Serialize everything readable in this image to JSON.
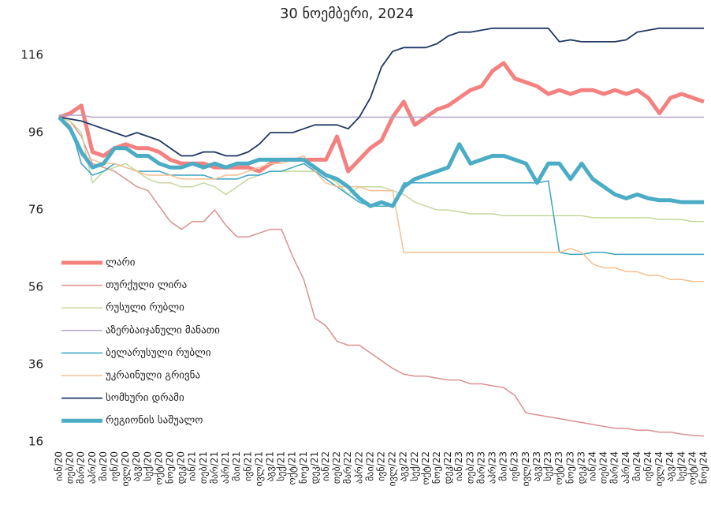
{
  "chart_data": {
    "type": "line",
    "title": "30 ნოემბერი, 2024",
    "categories": [
      "იან/20",
      "თებ/20",
      "მარ/20",
      "აპრ/20",
      "მაი/20",
      "ივნ/20",
      "ივლ/20",
      "აგვ/20",
      "სექ/20",
      "ოქტ/20",
      "ნოე/20",
      "დეკ/20",
      "იან/21",
      "თებ/21",
      "მარ/21",
      "აპრ/21",
      "მაი/21",
      "ივნ/21",
      "ივლ/21",
      "აგვ/21",
      "სექ/21",
      "ოქტ/21",
      "ნოე/21",
      "დეკ/21",
      "იან/22",
      "თებ/22",
      "მარ/22",
      "აპრ/22",
      "მაი/22",
      "ივნ/22",
      "ივლ/22",
      "აგვ/22",
      "სექ/22",
      "ოქტ/22",
      "ნოე/22",
      "დეკ/22",
      "იან/23",
      "თებ/23",
      "მარ/23",
      "აპრ/23",
      "მაი/23",
      "ივნ/23",
      "ივლ/23",
      "აგვ/23",
      "სექ/23",
      "ოქტ/23",
      "ნოე/23",
      "დეკ/23",
      "იან/24",
      "თებ/24",
      "მარ/24",
      "აპრ/24",
      "მაი/24",
      "ივნ/24",
      "ივლ/24",
      "აგვ/24",
      "სექ/24",
      "ოქტ/24",
      "ნოე/24"
    ],
    "series": [
      {
        "name": "ლარი",
        "color": "#f4817f",
        "width": 5,
        "values": [
          100,
          101,
          103,
          91,
          90,
          92,
          93,
          92,
          92,
          91,
          89,
          88,
          88,
          88,
          87,
          87,
          87,
          87,
          86,
          88,
          89,
          89,
          89,
          89,
          89,
          95,
          86,
          89,
          92,
          94,
          100,
          104,
          98,
          100,
          102,
          103,
          105,
          107,
          108,
          112,
          114,
          110,
          109,
          108,
          106,
          107,
          106,
          107,
          107,
          106,
          107,
          106,
          107,
          105,
          101,
          105,
          106,
          105,
          104
        ]
      },
      {
        "name": "თურქული ლირა",
        "color": "#d9918f",
        "width": 1.5,
        "values": [
          100,
          99,
          95,
          88,
          87,
          86,
          84,
          82,
          81,
          77,
          73,
          71,
          73,
          73,
          76,
          72,
          69,
          69,
          70,
          71,
          71,
          64,
          58,
          48,
          46,
          42,
          41,
          41,
          39,
          37,
          35,
          33.5,
          33,
          33,
          32.5,
          32,
          32,
          31,
          31,
          30.5,
          30,
          28,
          23.5,
          23,
          22.5,
          22,
          21.5,
          21,
          20.5,
          20,
          19.5,
          19.5,
          19,
          19,
          18.5,
          18.5,
          18,
          17.7,
          17.5
        ]
      },
      {
        "name": "რუსული რუბლი",
        "color": "#c4d79b",
        "width": 1.5,
        "values": [
          100,
          99,
          96,
          83,
          86,
          87,
          88,
          86,
          84,
          83,
          83,
          82,
          82,
          83,
          82,
          80,
          82,
          84,
          85,
          86,
          86,
          86,
          86,
          86,
          85,
          83,
          80,
          82,
          82,
          82,
          81,
          80,
          78,
          77,
          76,
          76,
          75.5,
          75,
          75,
          75,
          74.5,
          74.5,
          74.5,
          74.5,
          74.5,
          74.5,
          74.5,
          74.5,
          74,
          74,
          74,
          74,
          74,
          74,
          73.5,
          73.5,
          73.5,
          73,
          73
        ]
      },
      {
        "name": "აზერბაიჯანული მანათი",
        "color": "#b3a2c7",
        "width": 1.5,
        "values": [
          100.5,
          100.5,
          100.5,
          100,
          100,
          100,
          100,
          100,
          100,
          100,
          100,
          100,
          100,
          100,
          100,
          100,
          100,
          100,
          100,
          100,
          100,
          100,
          100,
          100,
          100,
          100,
          100,
          100,
          100,
          100,
          100,
          100,
          100,
          100,
          100,
          100,
          100,
          100,
          100,
          100,
          100,
          100,
          100,
          100,
          100,
          100,
          100,
          100,
          100,
          100,
          100,
          100,
          100,
          100,
          100,
          100,
          100,
          100,
          100
        ]
      },
      {
        "name": "ბელარუსული რუბლი",
        "color": "#3aa4c4",
        "width": 1.5,
        "values": [
          100,
          98,
          88,
          85,
          86,
          88,
          87,
          86,
          86,
          86,
          85,
          85,
          85,
          85,
          84,
          84,
          84,
          85,
          85,
          86,
          86,
          87,
          88,
          86,
          84,
          82,
          80,
          78,
          77,
          77,
          77,
          83,
          83,
          83,
          83,
          83,
          83,
          83,
          83,
          83,
          83,
          83,
          83,
          83,
          83.5,
          65,
          64.5,
          64.5,
          65,
          65,
          64.5,
          64.5,
          64.5,
          64.5,
          64.5,
          64.5,
          64.5,
          64.5,
          64.5
        ]
      },
      {
        "name": "უკრაინული გრივნა",
        "color": "#f9bf8f",
        "width": 1.5,
        "values": [
          100,
          98,
          90,
          89,
          88,
          88,
          87,
          86,
          85,
          85,
          85,
          84,
          84,
          84,
          84,
          85,
          85,
          86,
          87,
          88,
          88,
          89,
          90,
          86,
          83,
          82,
          82,
          82,
          81,
          81,
          81,
          65,
          65,
          65,
          65,
          65,
          65,
          65,
          65,
          65,
          65,
          65,
          65,
          65,
          65,
          65,
          66,
          65,
          62,
          61,
          61,
          60,
          60,
          59,
          59,
          58,
          58,
          57.5,
          57.5
        ]
      },
      {
        "name": "სომხური დრამი",
        "color": "#1f3864",
        "width": 1.8,
        "values": [
          100,
          99.5,
          99,
          98,
          97,
          96,
          95,
          96,
          95,
          94,
          92,
          90,
          90,
          91,
          91,
          90,
          90,
          91,
          93,
          96,
          96,
          96,
          97,
          98,
          98,
          98,
          97,
          100,
          105,
          113,
          117,
          118,
          118,
          118,
          119,
          121,
          122,
          122,
          122.5,
          123,
          123,
          123,
          123,
          123,
          123,
          119.5,
          120,
          119.5,
          119.5,
          119.5,
          119.5,
          120,
          122,
          122.5,
          123,
          123,
          123,
          123,
          123
        ]
      },
      {
        "name": "რეგიონის საშუალო",
        "color": "#4bacc6",
        "width": 5,
        "values": [
          100,
          97,
          91,
          87,
          88,
          92,
          92,
          90,
          90,
          88,
          87,
          87,
          88,
          87,
          88,
          87,
          88,
          88,
          89,
          89,
          89,
          89,
          89,
          87,
          85,
          84,
          82,
          79,
          77,
          78,
          77,
          82,
          84,
          85,
          86,
          87,
          93,
          88,
          89,
          90,
          90,
          89,
          88,
          83,
          88,
          88,
          84,
          88,
          84,
          82,
          80,
          79,
          80,
          79,
          78.5,
          78.5,
          78,
          78,
          78
        ]
      }
    ],
    "ylim": [
      16,
      125
    ],
    "yticks": [
      16,
      36,
      56,
      76,
      96,
      116
    ]
  }
}
